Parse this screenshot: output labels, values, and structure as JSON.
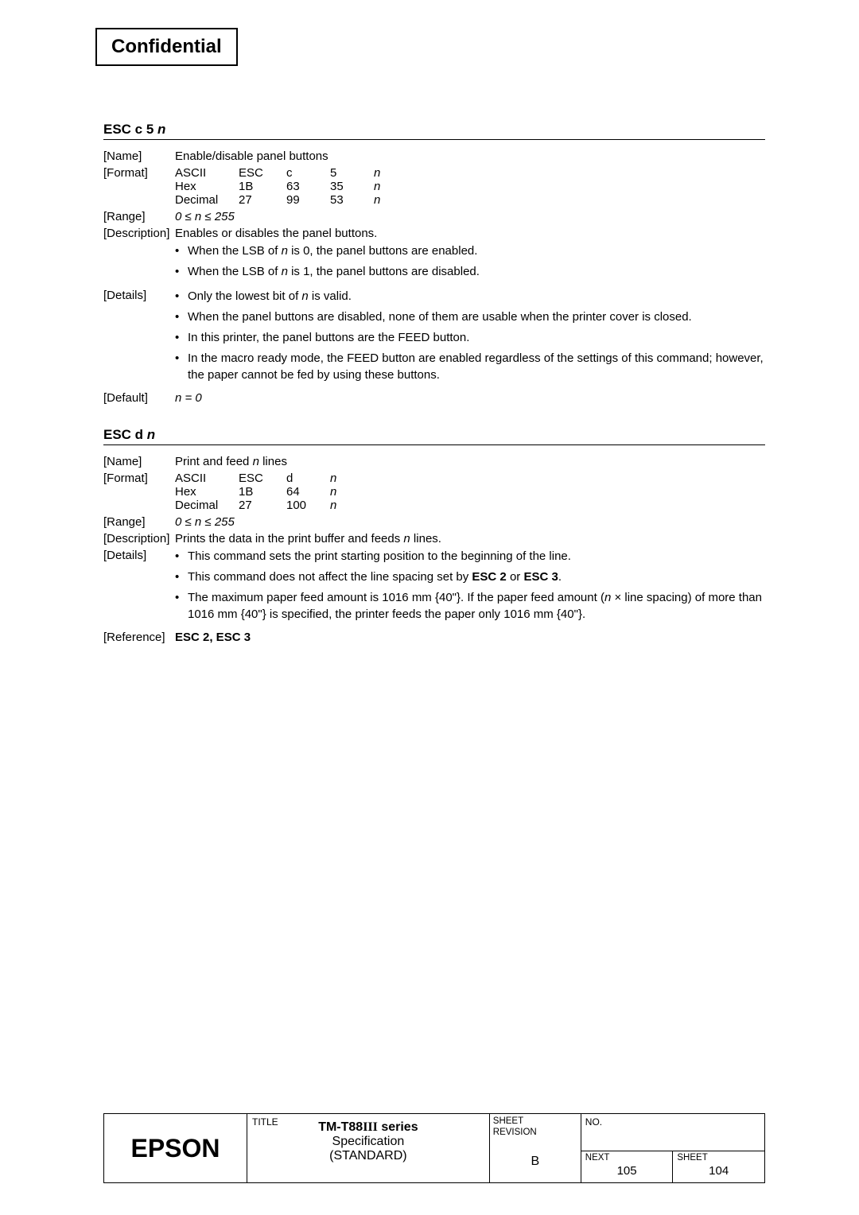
{
  "header": {
    "confidential": "Confidential"
  },
  "cmd1": {
    "title_prefix": "ESC c 5 ",
    "title_var": "n",
    "name_label": "[Name]",
    "name_value": "Enable/disable panel buttons",
    "format_label": "[Format]",
    "fmt": {
      "r1": [
        "ASCII",
        "ESC",
        "c",
        "5",
        "n"
      ],
      "r2": [
        "Hex",
        "1B",
        "63",
        "35",
        "n"
      ],
      "r3": [
        "Decimal",
        "27",
        "99",
        "53",
        "n"
      ]
    },
    "range_label": "[Range]",
    "range_value": "0 ≤ n ≤ 255",
    "desc_label": "[Description]",
    "desc_value": "Enables or disables the panel buttons.",
    "desc_b1a": "When the LSB of ",
    "desc_b1b": " is 0, the panel buttons are enabled.",
    "desc_b2a": "When the LSB of ",
    "desc_b2b": " is 1, the panel buttons are disabled.",
    "details_label": "[Details]",
    "det_b1a": "Only the lowest bit of ",
    "det_b1b": " is valid.",
    "det_b2": "When the panel buttons are disabled, none of them are usable when the printer cover is closed.",
    "det_b3": "In this printer, the panel buttons are the FEED button.",
    "det_b4": "In the macro ready mode, the FEED button are enabled regardless of the settings of this command; however, the paper cannot be fed by using these buttons.",
    "default_label": "[Default]",
    "default_value": "n = 0",
    "n": "n"
  },
  "cmd2": {
    "title_prefix": "ESC d ",
    "title_var": "n",
    "name_label": "[Name]",
    "name_value_a": "Print and feed ",
    "name_value_b": " lines",
    "format_label": "[Format]",
    "fmt": {
      "r1": [
        "ASCII",
        "ESC",
        "d",
        "n"
      ],
      "r2": [
        "Hex",
        "1B",
        "64",
        "n"
      ],
      "r3": [
        "Decimal",
        "27",
        "100",
        "n"
      ]
    },
    "range_label": "[Range]",
    "range_value": "0 ≤ n ≤ 255",
    "desc_label": "[Description]",
    "desc_value_a": "Prints the data in the print buffer and feeds ",
    "desc_value_b": " lines.",
    "details_label": "[Details]",
    "det_b1": "This command sets the print starting position to the beginning of the line.",
    "det_b2a": "This command does not affect the line spacing set by ",
    "det_b2b": "ESC 2",
    "det_b2c": " or ",
    "det_b2d": "ESC 3",
    "det_b2e": ".",
    "det_b3a": "The maximum paper feed amount is 1016 mm {40\"}.    If the paper feed amount (",
    "det_b3b": " × line spacing) of more than 1016 mm {40\"} is specified, the printer feeds the paper only 1016 mm {40\"}.",
    "ref_label": "[Reference]",
    "ref_value": "ESC 2, ESC 3",
    "n": "n"
  },
  "footer": {
    "logo": "EPSON",
    "title_label": "TITLE",
    "title_line1a": "TM-T88",
    "title_line1b": "III",
    "title_line1c": " series",
    "title_line2": "Specification",
    "title_line3": "(STANDARD)",
    "rev_label1": "SHEET",
    "rev_label2": "REVISION",
    "rev_value": "B",
    "no_label": "NO.",
    "next_label": "NEXT",
    "next_value": "105",
    "sheet_label": "SHEET",
    "sheet_value": "104"
  }
}
